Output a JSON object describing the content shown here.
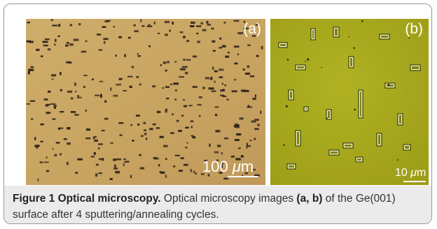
{
  "figure": {
    "panel_a": {
      "letter": "(a)",
      "scale_value": "100",
      "scale_unit_prefix": "μ",
      "scale_unit_suffix": "m"
    },
    "panel_b": {
      "letter": "(b)",
      "scale_value": "10",
      "scale_unit_prefix": "μ",
      "scale_unit_suffix": "m"
    },
    "caption": {
      "label": "Figure 1 Optical microscopy.",
      "text_1": " Optical microscopy images ",
      "panels_ref": "(a, b)",
      "text_2": " of the Ge(001) surface after 4 sputtering/annealing cycles."
    }
  },
  "colors": {
    "panel_a_bg": "#c9a663",
    "panel_a_pits": "#2b2118",
    "panel_b_bg": "#a7a81c",
    "panel_b_edges": "#3a3d0c",
    "panel_b_highlight": "#eef3c0",
    "caption_bg": "#ebebeb"
  }
}
